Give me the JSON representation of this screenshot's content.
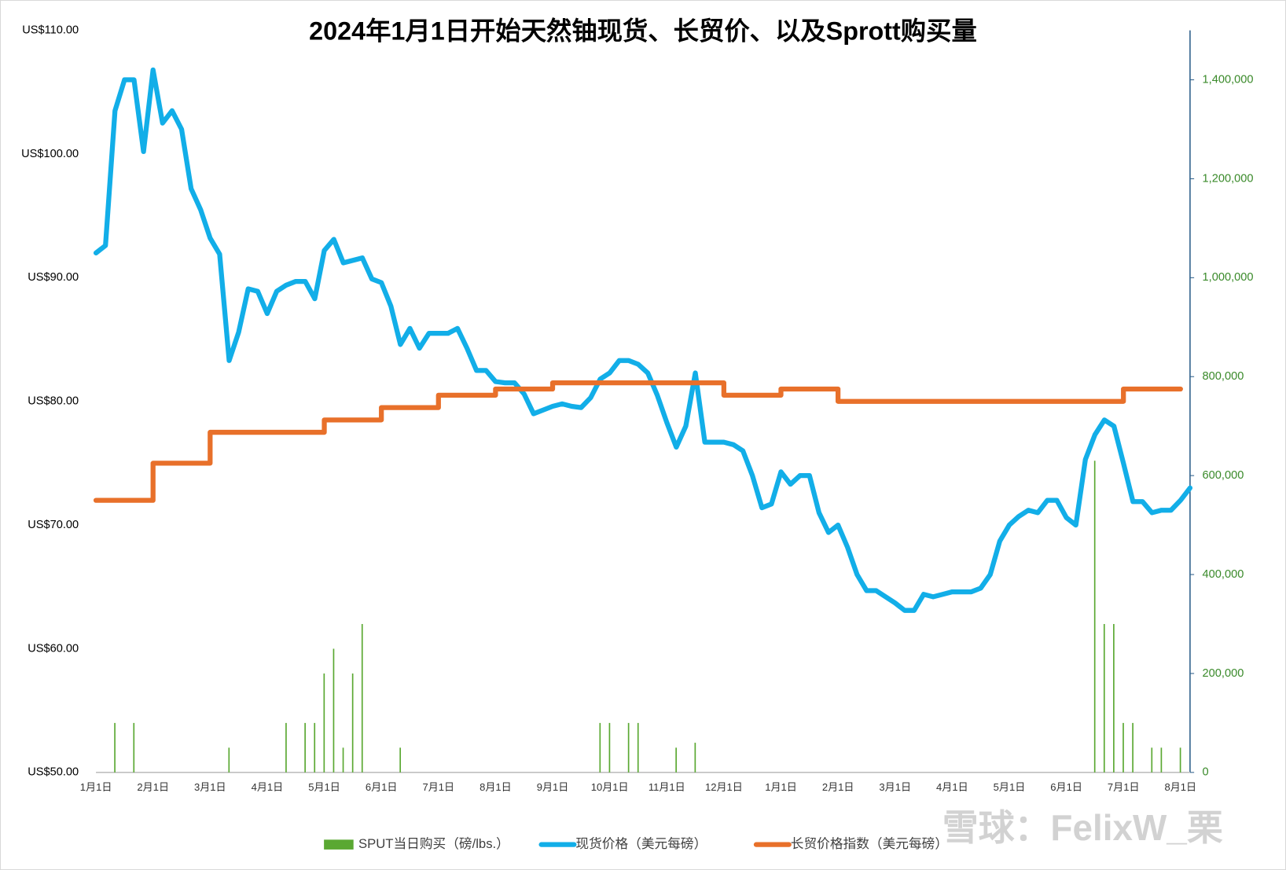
{
  "chart_data": {
    "type": "line",
    "title": "2024年1月1日开始天然铀现货、长贸价、以及Sprott购买量",
    "categories": [
      "1月1日",
      null,
      null,
      null,
      null,
      null,
      "2月1日",
      null,
      null,
      null,
      null,
      null,
      "3月1日",
      null,
      null,
      null,
      null,
      null,
      "4月1日",
      null,
      null,
      null,
      null,
      null,
      "5月1日",
      null,
      null,
      null,
      null,
      null,
      "6月1日",
      null,
      null,
      null,
      null,
      null,
      "7月1日",
      null,
      null,
      null,
      null,
      null,
      "8月1日",
      null,
      null,
      null,
      null,
      null,
      "9月1日",
      null,
      null,
      null,
      null,
      null,
      "10月1日",
      null,
      null,
      null,
      null,
      null,
      "11月1日",
      null,
      null,
      null,
      null,
      null,
      "12月1日",
      null,
      null,
      null,
      null,
      null,
      "1月1日",
      null,
      null,
      null,
      null,
      null,
      "2月1日",
      null,
      null,
      null,
      null,
      null,
      "3月1日",
      null,
      null,
      null,
      null,
      null,
      "4月1日",
      null,
      null,
      null,
      null,
      null,
      "5月1日",
      null,
      null,
      null,
      null,
      null,
      "6月1日",
      null,
      null,
      null,
      null,
      null,
      "7月1日",
      null,
      null,
      null,
      null,
      null,
      "8月1日",
      null
    ],
    "series": [
      {
        "name": "SPUT当日购买（磅/lbs.）",
        "type": "bar",
        "axis": "y2",
        "color": "#5aa832",
        "values": [
          0,
          0,
          100000,
          0,
          100000,
          0,
          0,
          0,
          0,
          0,
          0,
          0,
          0,
          0,
          50000,
          0,
          0,
          0,
          0,
          0,
          100000,
          0,
          100000,
          100000,
          200000,
          250000,
          50000,
          200000,
          300000,
          0,
          0,
          0,
          50000,
          0,
          0,
          0,
          0,
          0,
          0,
          0,
          0,
          0,
          0,
          0,
          0,
          0,
          0,
          0,
          0,
          0,
          0,
          0,
          0,
          100000,
          100000,
          0,
          100000,
          100000,
          0,
          0,
          0,
          50000,
          0,
          60000,
          0,
          0,
          0,
          0,
          0,
          0,
          0,
          0,
          0,
          0,
          0,
          0,
          0,
          0,
          0,
          0,
          0,
          0,
          0,
          0,
          0,
          0,
          0,
          0,
          0,
          0,
          0,
          0,
          0,
          0,
          0,
          0,
          0,
          0,
          0,
          0,
          0,
          0,
          0,
          0,
          0,
          630000,
          300000,
          300000,
          100000,
          100000,
          0,
          50000,
          50000,
          0,
          50000,
          0
        ]
      },
      {
        "name": "现货价格（美元每磅）",
        "type": "line",
        "color": "#12aee8",
        "values": [
          92.0,
          92.6,
          103.5,
          106.0,
          106.0,
          100.2,
          106.8,
          102.5,
          103.5,
          102.0,
          97.2,
          95.5,
          93.2,
          91.9,
          83.3,
          85.6,
          89.1,
          88.9,
          87.1,
          88.9,
          89.4,
          89.7,
          89.7,
          88.3,
          92.2,
          93.1,
          91.2,
          91.4,
          91.6,
          89.9,
          89.6,
          87.7,
          84.6,
          85.9,
          84.3,
          85.5,
          85.5,
          85.5,
          85.9,
          84.3,
          82.5,
          82.5,
          81.6,
          81.5,
          81.5,
          80.6,
          79.0,
          79.3,
          79.6,
          79.8,
          79.6,
          79.5,
          80.3,
          81.8,
          82.3,
          83.3,
          83.3,
          83.0,
          82.3,
          80.5,
          78.3,
          76.3,
          78.0,
          82.3,
          76.7,
          76.7,
          76.7,
          76.5,
          76.0,
          74.0,
          71.4,
          71.7,
          74.3,
          73.3,
          74.0,
          74.0,
          71.0,
          69.4,
          70.0,
          68.2,
          66.0,
          64.7,
          64.7,
          64.2,
          63.7,
          63.1,
          63.1,
          64.4,
          64.2,
          64.4,
          64.6,
          64.6,
          64.6,
          64.9,
          66.0,
          68.7,
          70.0,
          70.7,
          71.2,
          71.0,
          72.0,
          72.0,
          70.6,
          70.0,
          75.3,
          77.3,
          78.5,
          78.0,
          75.0,
          71.9,
          71.9,
          71.0,
          71.2,
          71.2,
          72.0,
          73.0
        ]
      },
      {
        "name": "长贸价格指数（美元每磅）",
        "type": "step",
        "color": "#e8702a",
        "values": [
          72,
          72,
          72,
          72,
          72,
          72,
          75,
          75,
          75,
          75,
          75,
          75,
          77.5,
          77.5,
          77.5,
          77.5,
          77.5,
          77.5,
          77.5,
          77.5,
          77.5,
          77.5,
          77.5,
          77.5,
          78.5,
          78.5,
          78.5,
          78.5,
          78.5,
          78.5,
          79.5,
          79.5,
          79.5,
          79.5,
          79.5,
          79.5,
          80.5,
          80.5,
          80.5,
          80.5,
          80.5,
          80.5,
          81,
          81,
          81,
          81,
          81,
          81,
          81.5,
          81.5,
          81.5,
          81.5,
          81.5,
          81.5,
          81.5,
          81.5,
          81.5,
          81.5,
          81.5,
          81.5,
          81.5,
          81.5,
          81.5,
          81.5,
          81.5,
          81.5,
          80.5,
          80.5,
          80.5,
          80.5,
          80.5,
          80.5,
          81,
          81,
          81,
          81,
          81,
          81,
          80,
          80,
          80,
          80,
          80,
          80,
          80,
          80,
          80,
          80,
          80,
          80,
          80,
          80,
          80,
          80,
          80,
          80,
          80,
          80,
          80,
          80,
          80,
          80,
          80,
          80,
          80,
          80,
          80,
          80,
          81,
          81,
          81,
          81,
          81,
          81,
          81,
          null
        ]
      }
    ],
    "ylim": [
      50,
      110
    ],
    "yticks": [
      {
        "value": 50,
        "label": "US$50.00"
      },
      {
        "value": 60,
        "label": "US$60.00"
      },
      {
        "value": 70,
        "label": "US$70.00"
      },
      {
        "value": 80,
        "label": "US$80.00"
      },
      {
        "value": 90,
        "label": "US$90.00"
      },
      {
        "value": 100,
        "label": "US$100.00"
      },
      {
        "value": 110,
        "label": "US$110.00"
      }
    ],
    "y2lim": [
      0,
      1500000
    ],
    "y2ticks": [
      0,
      {
        "value": 200000,
        "label": "200,000"
      },
      {
        "value": 400000,
        "label": "400,000"
      },
      {
        "value": 600000,
        "label": "600,000"
      },
      {
        "value": 800000,
        "label": "800,000"
      },
      {
        "value": 1000000,
        "label": "1,000,000"
      },
      {
        "value": 1200000,
        "label": "1,200,000"
      },
      {
        "value": 1400000,
        "label": "1,400,000"
      }
    ],
    "legend": "bottom",
    "watermark": "雪球：FelixW_栗"
  }
}
